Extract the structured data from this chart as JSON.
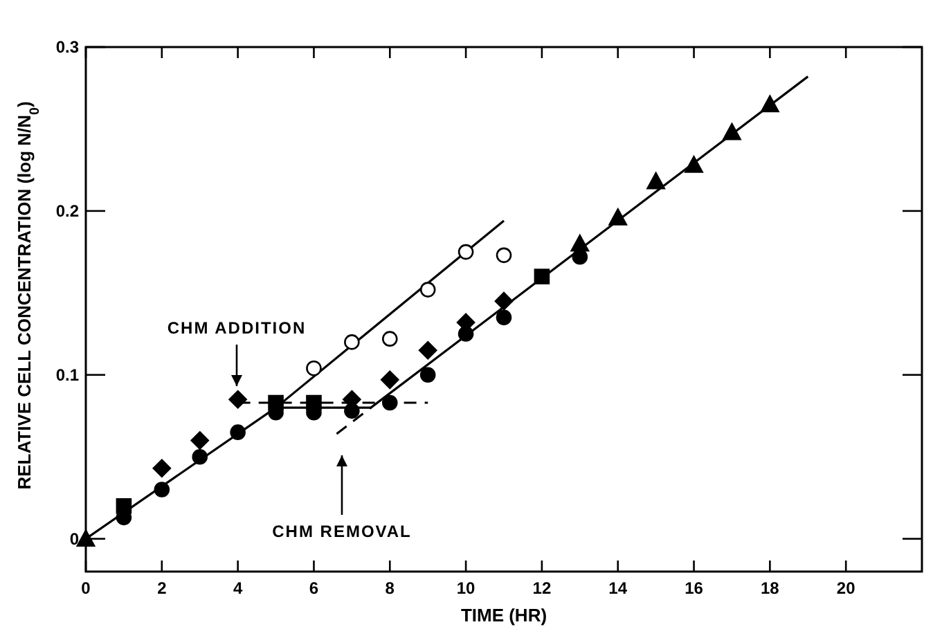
{
  "chart_data": {
    "type": "scatter",
    "xlabel": "TIME (HR)",
    "ylabel": "RELATIVE CELL CONCENTRATION (log N/N$_{0}$)",
    "xlim": [
      0,
      22
    ],
    "ylim": [
      -0.02,
      0.3
    ],
    "xticks": [
      0,
      2,
      4,
      6,
      8,
      10,
      12,
      14,
      16,
      18,
      20
    ],
    "yticks": [
      0,
      0.1,
      0.2,
      0.3
    ],
    "grid": false,
    "series": [
      {
        "marker": "circle",
        "color": "#000000",
        "x": [
          1,
          2,
          3,
          4,
          5,
          6,
          7,
          8,
          9,
          10,
          11,
          13
        ],
        "values": [
          0.013,
          0.03,
          0.05,
          0.065,
          0.077,
          0.077,
          0.078,
          0.083,
          0.1,
          0.125,
          0.135,
          0.172
        ]
      },
      {
        "marker": "square",
        "color": "#000000",
        "x": [
          1,
          5,
          6,
          12
        ],
        "values": [
          0.02,
          0.083,
          0.083,
          0.16
        ]
      },
      {
        "marker": "diamond",
        "color": "#000000",
        "x": [
          2,
          3,
          4,
          7,
          8,
          9,
          10,
          11
        ],
        "values": [
          0.043,
          0.06,
          0.085,
          0.085,
          0.097,
          0.115,
          0.132,
          0.145
        ]
      },
      {
        "marker": "triangle",
        "color": "#000000",
        "x": [
          0,
          13,
          14,
          15,
          16,
          17,
          18
        ],
        "values": [
          0,
          0.18,
          0.196,
          0.218,
          0.228,
          0.248,
          0.265
        ]
      },
      {
        "marker": "circle",
        "color": "#ffffff",
        "x": [
          6,
          7,
          8,
          9,
          10,
          11
        ],
        "values": [
          0.104,
          0.12,
          0.122,
          0.152,
          0.175,
          0.173
        ]
      },
      {
        "type": "line",
        "marker": "none",
        "line_style": "solid",
        "color": "#000000",
        "x": [
          0,
          5,
          7.5,
          19
        ],
        "values": [
          0,
          0.08,
          0.08,
          0.282
        ]
      },
      {
        "type": "line",
        "marker": "none",
        "line_style": "solid",
        "color": "#000000",
        "x": [
          5,
          11
        ],
        "values": [
          0.08,
          0.194
        ]
      },
      {
        "type": "line",
        "marker": "none",
        "line_style": "dashed",
        "color": "#000000",
        "x": [
          4,
          9
        ],
        "values": [
          0.083,
          0.083
        ]
      },
      {
        "type": "line",
        "marker": "none",
        "line_style": "dashed",
        "color": "#000000",
        "x": [
          6.6,
          7.5
        ],
        "values": [
          0.064,
          0.08
        ]
      }
    ],
    "annotations": [
      "CHM ADDITION",
      "CHM REMOVAL"
    ]
  }
}
